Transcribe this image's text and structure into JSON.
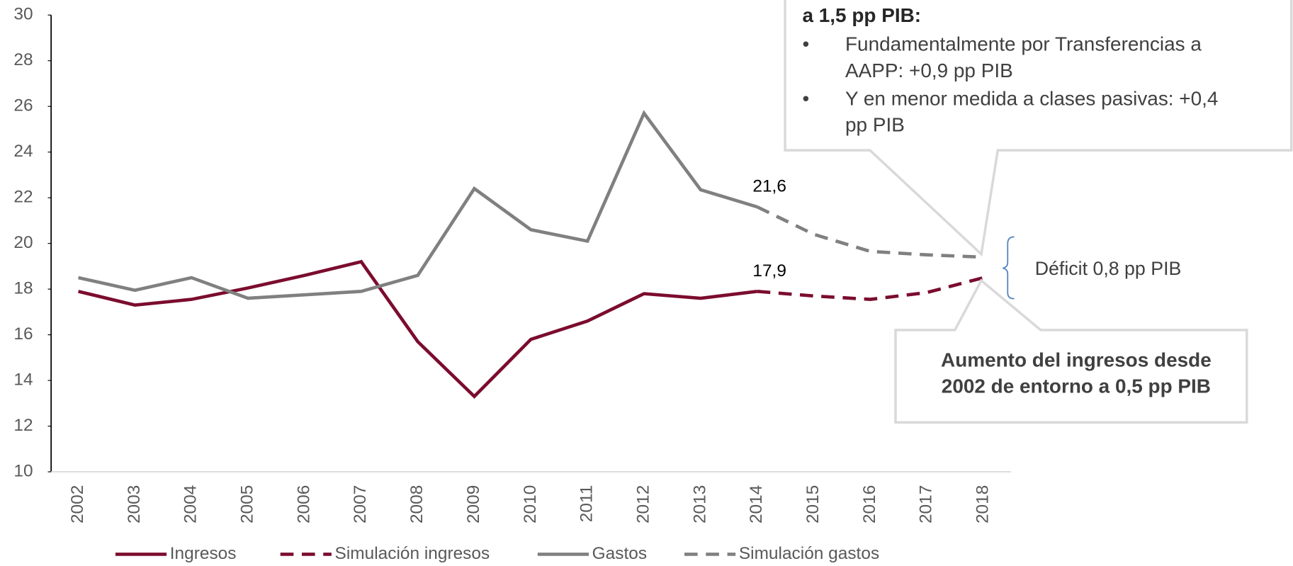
{
  "chart_data": {
    "type": "line",
    "categories": [
      "2002",
      "2003",
      "2004",
      "2005",
      "2006",
      "2007",
      "2008",
      "2009",
      "2010",
      "2011",
      "2012",
      "2013",
      "2014",
      "2015",
      "2016",
      "2017",
      "2018"
    ],
    "series": [
      {
        "name": "Ingresos",
        "color": "#7b0c2e",
        "style": "solid",
        "values": [
          17.9,
          17.3,
          17.55,
          18.05,
          18.6,
          19.2,
          15.7,
          13.3,
          15.8,
          16.6,
          17.8,
          17.6,
          17.9,
          null,
          null,
          null,
          null
        ],
        "value_labels": [
          null,
          null,
          null,
          null,
          null,
          null,
          null,
          null,
          null,
          null,
          null,
          null,
          "17,9",
          null,
          null,
          null,
          null
        ]
      },
      {
        "name": "Simulación ingresos",
        "color": "#7b0c2e",
        "style": "dashed",
        "values": [
          null,
          null,
          null,
          null,
          null,
          null,
          null,
          null,
          null,
          null,
          null,
          null,
          17.9,
          17.7,
          17.55,
          17.85,
          18.5
        ]
      },
      {
        "name": "Gastos",
        "color": "#808080",
        "style": "solid",
        "values": [
          18.5,
          17.95,
          18.5,
          17.6,
          17.75,
          17.9,
          18.6,
          22.4,
          20.6,
          20.1,
          25.7,
          22.35,
          21.6,
          null,
          null,
          null,
          null
        ],
        "value_labels": [
          null,
          null,
          null,
          null,
          null,
          null,
          null,
          null,
          null,
          null,
          null,
          null,
          "21,6",
          null,
          null,
          null,
          null
        ]
      },
      {
        "name": "Simulación gastos",
        "color": "#808080",
        "style": "dashed",
        "values": [
          null,
          null,
          null,
          null,
          null,
          null,
          null,
          null,
          null,
          null,
          null,
          null,
          21.6,
          20.4,
          19.65,
          19.5,
          19.4
        ]
      }
    ],
    "ylim": [
      10,
      30
    ],
    "yticks": [
      10,
      12,
      14,
      16,
      18,
      20,
      22,
      24,
      26,
      28,
      30
    ],
    "legend": "bottom",
    "annotations": {
      "box_top": {
        "heading": "a 1,5 pp PIB:",
        "bullets": [
          [
            "Fundamentalmente por Transferencias a",
            "AAPP: +0,9 pp PIB"
          ],
          [
            "Y en menor medida a clases pasivas: +0,4",
            "pp PIB"
          ]
        ]
      },
      "deficit": "Déficit 0,8 pp PIB",
      "box_bottom": [
        "Aumento del ingresos desde",
        "2002 de entorno  a 0,5 pp PIB"
      ]
    }
  }
}
